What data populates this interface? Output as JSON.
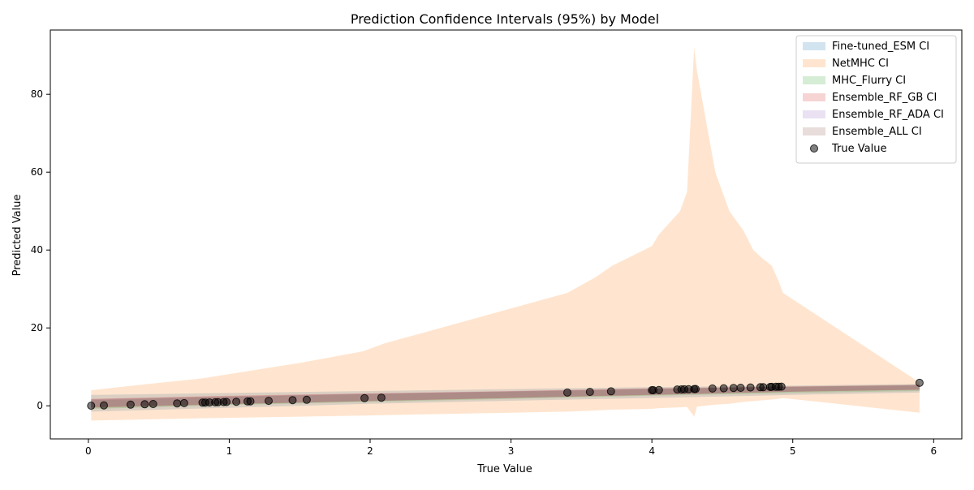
{
  "chart_data": {
    "type": "scatter",
    "title": "Prediction Confidence Intervals (95%) by Model",
    "xlabel": "True Value",
    "ylabel": "Predicted Value",
    "xlim": [
      -0.27,
      6.2
    ],
    "ylim": [
      -8.5,
      96.5
    ],
    "xticks": [
      0,
      1,
      2,
      3,
      4,
      5,
      6
    ],
    "yticks": [
      0,
      20,
      40,
      60,
      80
    ],
    "grid": false,
    "legend_position": "top-right",
    "bands": [
      {
        "name": "Fine-tuned_ESM CI",
        "color": "#1f77b4",
        "x": [
          0.02,
          1.0,
          2.0,
          3.0,
          4.0,
          5.0,
          5.9
        ],
        "lower": [
          -1.5,
          -0.5,
          0.5,
          1.3,
          2.0,
          2.8,
          3.4
        ],
        "upper": [
          2.8,
          3.3,
          3.8,
          4.3,
          4.8,
          5.2,
          5.6
        ]
      },
      {
        "name": "NetMHC CI",
        "color": "#ff7f0e",
        "x": [
          0.02,
          0.4,
          0.8,
          1.15,
          1.5,
          1.95,
          2.1,
          3.4,
          3.6,
          3.72,
          4.0,
          4.05,
          4.2,
          4.25,
          4.3,
          4.32,
          4.45,
          4.55,
          4.65,
          4.72,
          4.78,
          4.85,
          4.9,
          4.93,
          5.9
        ],
        "lower": [
          -3.8,
          -3.5,
          -3.2,
          -3.0,
          -2.8,
          -2.5,
          -2.4,
          -1.5,
          -1.2,
          -1.0,
          -0.8,
          -0.6,
          -0.4,
          -0.3,
          -2.8,
          -0.2,
          0.3,
          0.5,
          1.0,
          1.2,
          1.4,
          1.6,
          1.8,
          2.0,
          -1.8
        ],
        "upper": [
          4.0,
          5.5,
          7.0,
          9.0,
          11.0,
          14.0,
          16.0,
          29.0,
          33.0,
          36.0,
          41.0,
          44.0,
          50.0,
          55.0,
          92.0,
          86.0,
          60.0,
          50.0,
          45.0,
          40.0,
          38.0,
          36.0,
          32.0,
          29.0,
          6.0
        ]
      },
      {
        "name": "MHC_Flurry CI",
        "color": "#2ca02c",
        "x": [
          0.02,
          1.0,
          2.0,
          3.0,
          4.0,
          5.0,
          5.9
        ],
        "lower": [
          -0.8,
          0.2,
          1.0,
          1.8,
          2.6,
          3.3,
          3.8
        ],
        "upper": [
          1.4,
          2.3,
          3.0,
          3.6,
          4.3,
          4.9,
          5.3
        ]
      },
      {
        "name": "Ensemble_RF_GB CI",
        "color": "#d62728",
        "x": [
          0.02,
          1.0,
          2.0,
          3.0,
          4.0,
          5.0,
          5.9
        ],
        "lower": [
          -0.5,
          0.4,
          1.2,
          2.0,
          2.8,
          3.6,
          4.1
        ],
        "upper": [
          1.8,
          2.6,
          3.2,
          3.8,
          4.5,
          5.0,
          5.4
        ]
      },
      {
        "name": "Ensemble_RF_ADA CI",
        "color": "#9467bd",
        "x": [
          0.02,
          1.0,
          2.0,
          3.0,
          4.0,
          5.0,
          5.9
        ],
        "lower": [
          -0.3,
          0.5,
          1.3,
          2.1,
          2.9,
          3.7,
          4.2
        ],
        "upper": [
          1.6,
          2.4,
          3.1,
          3.7,
          4.4,
          4.9,
          5.3
        ]
      },
      {
        "name": "Ensemble_ALL CI",
        "color": "#8c564b",
        "x": [
          0.02,
          1.0,
          2.0,
          3.0,
          4.0,
          5.0,
          5.9
        ],
        "lower": [
          -0.4,
          0.4,
          1.2,
          2.0,
          2.8,
          3.6,
          4.1
        ],
        "upper": [
          1.7,
          2.5,
          3.1,
          3.7,
          4.4,
          4.9,
          5.3
        ]
      }
    ],
    "true_points": {
      "name": "True Value",
      "color": "#000000",
      "x": [
        0.02,
        0.11,
        0.3,
        0.4,
        0.46,
        0.63,
        0.68,
        0.81,
        0.83,
        0.86,
        0.9,
        0.92,
        0.96,
        0.98,
        1.05,
        1.13,
        1.15,
        1.28,
        1.45,
        1.55,
        1.96,
        2.08,
        3.4,
        3.56,
        3.71,
        4.0,
        4.01,
        4.05,
        4.18,
        4.21,
        4.23,
        4.26,
        4.3,
        4.31,
        4.43,
        4.51,
        4.58,
        4.63,
        4.7,
        4.77,
        4.79,
        4.84,
        4.85,
        4.88,
        4.9,
        4.92,
        5.9
      ],
      "y": [
        0.02,
        0.11,
        0.3,
        0.4,
        0.46,
        0.63,
        0.68,
        0.81,
        0.83,
        0.86,
        0.9,
        0.92,
        0.96,
        0.98,
        1.05,
        1.13,
        1.15,
        1.28,
        1.45,
        1.55,
        1.96,
        2.08,
        3.4,
        3.56,
        3.71,
        4.0,
        4.01,
        4.05,
        4.18,
        4.21,
        4.23,
        4.26,
        4.3,
        4.31,
        4.43,
        4.51,
        4.58,
        4.63,
        4.7,
        4.77,
        4.79,
        4.84,
        4.85,
        4.88,
        4.9,
        4.92,
        5.9
      ]
    }
  }
}
